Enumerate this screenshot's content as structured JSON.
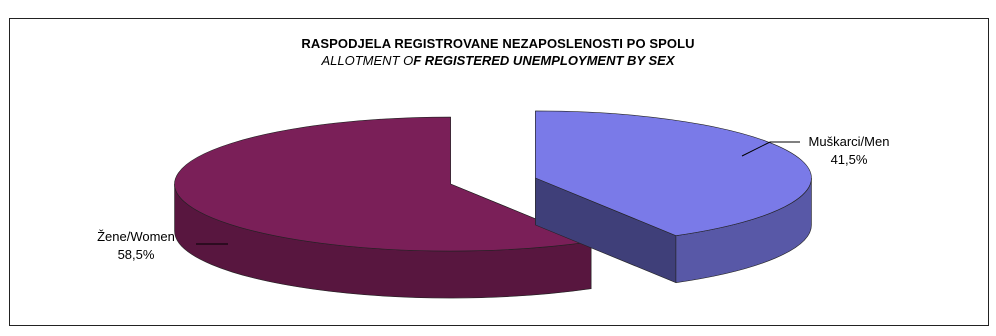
{
  "chart_data": {
    "type": "pie",
    "title": "RASPODJELA REGISTROVANE NEZAPOSLENOSTI PO SPOLU",
    "subtitle": {
      "prefix": "ALLOTMENT O",
      "emphasis": "F REGISTERED UNEMPLOYMENT BY SEX"
    },
    "slices": [
      {
        "name": "Muškarci/Men",
        "value": 41.5,
        "value_label": "41,5%",
        "color": "#7a7ae8"
      },
      {
        "name": "Žene/Women",
        "value": 58.5,
        "value_label": "58,5%",
        "color": "#7a1f58"
      }
    ],
    "style": "3d-exploded",
    "legend": "none"
  }
}
